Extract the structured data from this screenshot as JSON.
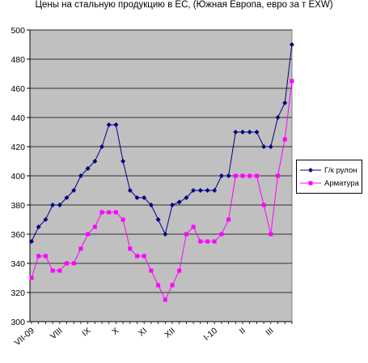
{
  "chart_data": {
    "type": "line",
    "title": "Цены на стальную продукцию в ЕС, (Южная Европа, евро за т EXW)",
    "xlabel": "",
    "ylabel": "",
    "ylim": [
      300,
      500
    ],
    "yticks": [
      300,
      320,
      340,
      360,
      380,
      400,
      420,
      440,
      460,
      480,
      500
    ],
    "x_tick_labels": [
      "VII-09",
      "VIII",
      "IX",
      "X",
      "XI",
      "XII",
      "I-10",
      "II",
      "III"
    ],
    "grid": "horizontal",
    "plot_background": "#c0c0c0",
    "legend_position": "right",
    "series": [
      {
        "name": "Г/к рулон",
        "color": "#000080",
        "marker": "diamond",
        "values": [
          355,
          365,
          370,
          380,
          380,
          385,
          390,
          400,
          405,
          410,
          420,
          435,
          435,
          410,
          390,
          385,
          385,
          380,
          370,
          360,
          380,
          382,
          385,
          390,
          390,
          390,
          390,
          400,
          400,
          430,
          430,
          430,
          430,
          420,
          420,
          440,
          450,
          490
        ]
      },
      {
        "name": "Арматура",
        "color": "#ff00ff",
        "marker": "square",
        "values": [
          330,
          345,
          345,
          335,
          335,
          340,
          340,
          350,
          360,
          365,
          375,
          375,
          375,
          370,
          350,
          345,
          345,
          335,
          325,
          315,
          325,
          335,
          360,
          365,
          355,
          355,
          355,
          360,
          370,
          400,
          400,
          400,
          400,
          380,
          360,
          400,
          425,
          465
        ]
      }
    ]
  }
}
